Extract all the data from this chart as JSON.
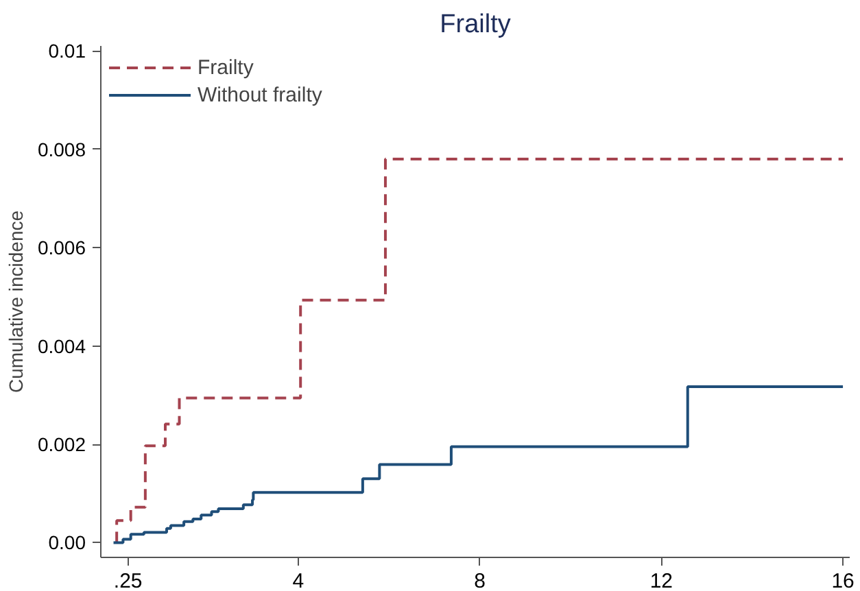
{
  "chart_data": {
    "type": "step",
    "title": "Frailty",
    "ylabel": "Cumulative incidence",
    "xlim": [
      -0.35,
      16.15
    ],
    "ylim": [
      -0.0003,
      0.0101
    ],
    "xticks": [
      {
        "value": 0.25,
        "label": ".25"
      },
      4,
      8,
      12,
      16
    ],
    "yticks": [
      {
        "value": 0,
        "label": "0.00"
      },
      0.002,
      0.004,
      0.006,
      0.008,
      {
        "value": 0.01,
        "label": "0.01"
      }
    ],
    "grid": false,
    "legend": "top left",
    "series": [
      {
        "name": "Frailty",
        "color": "#a5434f",
        "line_style": "dashed",
        "x": [
          0,
          0,
          0.31,
          0.63,
          1.07,
          1.38,
          4.05,
          5.92,
          16
        ],
        "values": [
          0,
          0.00045,
          0.00072,
          0.00197,
          0.00241,
          0.00294,
          0.00493,
          0.0078,
          0.0078
        ]
      },
      {
        "name": "Without frailty",
        "color": "#1f4e79",
        "line_style": "solid",
        "x": [
          -0.07,
          0.14,
          0.31,
          0.6,
          1.1,
          1.19,
          1.48,
          1.68,
          1.86,
          2.09,
          2.24,
          2.79,
          2.99,
          3.01,
          5.42,
          5.79,
          7.37,
          12.58,
          16
        ],
        "values": [
          0,
          7e-05,
          0.00017,
          0.00021,
          0.00029,
          0.00035,
          0.00043,
          0.00048,
          0.00056,
          0.00063,
          0.00069,
          0.00077,
          0.00087,
          0.00102,
          0.0013,
          0.00159,
          0.00195,
          0.00317,
          0.00317
        ]
      }
    ]
  }
}
